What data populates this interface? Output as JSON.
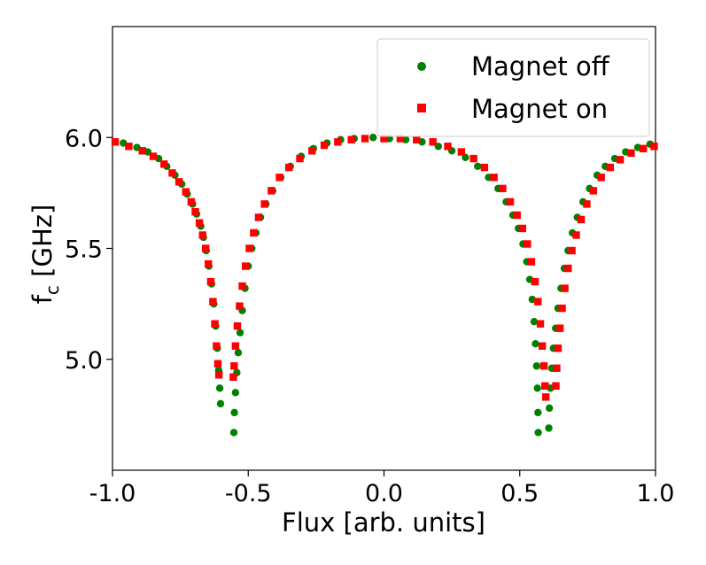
{
  "chart_data": {
    "type": "scatter",
    "title": "",
    "xlabel": "Flux [arb. units]",
    "ylabel_main": "f",
    "ylabel_sub": "c",
    "ylabel_unit": " [GHz]",
    "xlim": [
      -1.0,
      1.0
    ],
    "ylim": [
      4.5,
      6.5
    ],
    "xticks": [
      -1.0,
      -0.5,
      0.0,
      0.5,
      1.0
    ],
    "xtick_labels": [
      "-1.0",
      "-0.5",
      "0.0",
      "0.5",
      "1.0"
    ],
    "yticks": [
      5.0,
      5.5,
      6.0
    ],
    "ytick_labels": [
      "5.0",
      "5.5",
      "6.0"
    ],
    "grid": false,
    "legend_position": "top-right",
    "series": [
      {
        "name": "Magnet off",
        "marker": "circle",
        "color": "#008000",
        "center_left": -0.58,
        "center_right": 0.585,
        "points": [
          {
            "x": -0.96,
            "y": 5.975
          },
          {
            "x": -0.91,
            "y": 5.955
          },
          {
            "x": -0.87,
            "y": 5.935
          },
          {
            "x": -0.83,
            "y": 5.905
          },
          {
            "x": -0.8,
            "y": 5.87
          },
          {
            "x": -0.77,
            "y": 5.83
          },
          {
            "x": -0.745,
            "y": 5.79
          },
          {
            "x": -0.725,
            "y": 5.745
          },
          {
            "x": -0.705,
            "y": 5.7
          },
          {
            "x": -0.69,
            "y": 5.655
          },
          {
            "x": -0.675,
            "y": 5.6
          },
          {
            "x": -0.665,
            "y": 5.55
          },
          {
            "x": -0.655,
            "y": 5.49
          },
          {
            "x": -0.645,
            "y": 5.42
          },
          {
            "x": -0.635,
            "y": 5.34
          },
          {
            "x": -0.627,
            "y": 5.25
          },
          {
            "x": -0.62,
            "y": 5.15
          },
          {
            "x": -0.614,
            "y": 5.05
          },
          {
            "x": -0.609,
            "y": 4.95
          },
          {
            "x": -0.605,
            "y": 4.87
          },
          {
            "x": -0.602,
            "y": 4.8
          },
          {
            "x": -0.553,
            "y": 4.67
          },
          {
            "x": -0.551,
            "y": 4.76
          },
          {
            "x": -0.547,
            "y": 4.85
          },
          {
            "x": -0.542,
            "y": 4.94
          },
          {
            "x": -0.537,
            "y": 5.03
          },
          {
            "x": -0.53,
            "y": 5.12
          },
          {
            "x": -0.522,
            "y": 5.22
          },
          {
            "x": -0.512,
            "y": 5.32
          },
          {
            "x": -0.5,
            "y": 5.42
          },
          {
            "x": -0.487,
            "y": 5.5
          },
          {
            "x": -0.472,
            "y": 5.57
          },
          {
            "x": -0.455,
            "y": 5.64
          },
          {
            "x": -0.435,
            "y": 5.7
          },
          {
            "x": -0.41,
            "y": 5.76
          },
          {
            "x": -0.38,
            "y": 5.82
          },
          {
            "x": -0.345,
            "y": 5.87
          },
          {
            "x": -0.305,
            "y": 5.915
          },
          {
            "x": -0.26,
            "y": 5.95
          },
          {
            "x": -0.21,
            "y": 5.975
          },
          {
            "x": -0.16,
            "y": 5.99
          },
          {
            "x": -0.11,
            "y": 5.995
          },
          {
            "x": -0.04,
            "y": 6.0
          },
          {
            "x": 0.02,
            "y": 5.995
          },
          {
            "x": 0.08,
            "y": 5.99
          },
          {
            "x": 0.14,
            "y": 5.98
          },
          {
            "x": 0.2,
            "y": 5.96
          },
          {
            "x": 0.25,
            "y": 5.94
          },
          {
            "x": 0.3,
            "y": 5.91
          },
          {
            "x": 0.345,
            "y": 5.87
          },
          {
            "x": 0.385,
            "y": 5.82
          },
          {
            "x": 0.42,
            "y": 5.77
          },
          {
            "x": 0.45,
            "y": 5.71
          },
          {
            "x": 0.475,
            "y": 5.65
          },
          {
            "x": 0.495,
            "y": 5.59
          },
          {
            "x": 0.512,
            "y": 5.52
          },
          {
            "x": 0.526,
            "y": 5.44
          },
          {
            "x": 0.537,
            "y": 5.36
          },
          {
            "x": 0.546,
            "y": 5.27
          },
          {
            "x": 0.553,
            "y": 5.17
          },
          {
            "x": 0.558,
            "y": 5.07
          },
          {
            "x": 0.562,
            "y": 4.97
          },
          {
            "x": 0.565,
            "y": 4.87
          },
          {
            "x": 0.567,
            "y": 4.76
          },
          {
            "x": 0.568,
            "y": 4.67
          },
          {
            "x": 0.607,
            "y": 4.69
          },
          {
            "x": 0.609,
            "y": 4.78
          },
          {
            "x": 0.613,
            "y": 4.87
          },
          {
            "x": 0.618,
            "y": 4.96
          },
          {
            "x": 0.624,
            "y": 5.05
          },
          {
            "x": 0.632,
            "y": 5.14
          },
          {
            "x": 0.641,
            "y": 5.23
          },
          {
            "x": 0.652,
            "y": 5.32
          },
          {
            "x": 0.664,
            "y": 5.41
          },
          {
            "x": 0.678,
            "y": 5.49
          },
          {
            "x": 0.694,
            "y": 5.57
          },
          {
            "x": 0.712,
            "y": 5.64
          },
          {
            "x": 0.733,
            "y": 5.71
          },
          {
            "x": 0.757,
            "y": 5.77
          },
          {
            "x": 0.785,
            "y": 5.83
          },
          {
            "x": 0.815,
            "y": 5.87
          },
          {
            "x": 0.85,
            "y": 5.905
          },
          {
            "x": 0.89,
            "y": 5.935
          },
          {
            "x": 0.935,
            "y": 5.955
          },
          {
            "x": 0.98,
            "y": 5.97
          }
        ]
      },
      {
        "name": "Magnet on",
        "marker": "square",
        "color": "#ff0000",
        "points": [
          {
            "x": -0.99,
            "y": 5.98
          },
          {
            "x": -0.94,
            "y": 5.96
          },
          {
            "x": -0.89,
            "y": 5.94
          },
          {
            "x": -0.85,
            "y": 5.915
          },
          {
            "x": -0.81,
            "y": 5.88
          },
          {
            "x": -0.78,
            "y": 5.84
          },
          {
            "x": -0.755,
            "y": 5.8
          },
          {
            "x": -0.73,
            "y": 5.755
          },
          {
            "x": -0.71,
            "y": 5.71
          },
          {
            "x": -0.695,
            "y": 5.665
          },
          {
            "x": -0.68,
            "y": 5.615
          },
          {
            "x": -0.668,
            "y": 5.56
          },
          {
            "x": -0.657,
            "y": 5.5
          },
          {
            "x": -0.647,
            "y": 5.43
          },
          {
            "x": -0.638,
            "y": 5.35
          },
          {
            "x": -0.63,
            "y": 5.26
          },
          {
            "x": -0.623,
            "y": 5.16
          },
          {
            "x": -0.617,
            "y": 5.06
          },
          {
            "x": -0.612,
            "y": 4.98
          },
          {
            "x": -0.608,
            "y": 4.93
          },
          {
            "x": -0.555,
            "y": 4.92
          },
          {
            "x": -0.552,
            "y": 4.97
          },
          {
            "x": -0.547,
            "y": 5.06
          },
          {
            "x": -0.54,
            "y": 5.15
          },
          {
            "x": -0.532,
            "y": 5.24
          },
          {
            "x": -0.522,
            "y": 5.33
          },
          {
            "x": -0.51,
            "y": 5.42
          },
          {
            "x": -0.496,
            "y": 5.5
          },
          {
            "x": -0.48,
            "y": 5.57
          },
          {
            "x": -0.462,
            "y": 5.64
          },
          {
            "x": -0.44,
            "y": 5.7
          },
          {
            "x": -0.415,
            "y": 5.76
          },
          {
            "x": -0.385,
            "y": 5.82
          },
          {
            "x": -0.35,
            "y": 5.865
          },
          {
            "x": -0.31,
            "y": 5.905
          },
          {
            "x": -0.265,
            "y": 5.94
          },
          {
            "x": -0.22,
            "y": 5.965
          },
          {
            "x": -0.17,
            "y": 5.98
          },
          {
            "x": -0.12,
            "y": 5.99
          },
          {
            "x": -0.07,
            "y": 5.995
          },
          {
            "x": 0.0,
            "y": 5.995
          },
          {
            "x": 0.06,
            "y": 5.995
          },
          {
            "x": 0.12,
            "y": 5.99
          },
          {
            "x": 0.18,
            "y": 5.98
          },
          {
            "x": 0.235,
            "y": 5.96
          },
          {
            "x": 0.285,
            "y": 5.935
          },
          {
            "x": 0.33,
            "y": 5.905
          },
          {
            "x": 0.37,
            "y": 5.865
          },
          {
            "x": 0.405,
            "y": 5.82
          },
          {
            "x": 0.437,
            "y": 5.77
          },
          {
            "x": 0.465,
            "y": 5.71
          },
          {
            "x": 0.49,
            "y": 5.65
          },
          {
            "x": 0.51,
            "y": 5.59
          },
          {
            "x": 0.528,
            "y": 5.52
          },
          {
            "x": 0.543,
            "y": 5.44
          },
          {
            "x": 0.556,
            "y": 5.35
          },
          {
            "x": 0.567,
            "y": 5.26
          },
          {
            "x": 0.576,
            "y": 5.16
          },
          {
            "x": 0.583,
            "y": 5.06
          },
          {
            "x": 0.589,
            "y": 4.97
          },
          {
            "x": 0.593,
            "y": 4.88
          },
          {
            "x": 0.596,
            "y": 4.83
          },
          {
            "x": 0.633,
            "y": 4.88
          },
          {
            "x": 0.636,
            "y": 4.96
          },
          {
            "x": 0.641,
            "y": 5.05
          },
          {
            "x": 0.648,
            "y": 5.14
          },
          {
            "x": 0.656,
            "y": 5.23
          },
          {
            "x": 0.666,
            "y": 5.32
          },
          {
            "x": 0.678,
            "y": 5.41
          },
          {
            "x": 0.692,
            "y": 5.49
          },
          {
            "x": 0.708,
            "y": 5.56
          },
          {
            "x": 0.726,
            "y": 5.63
          },
          {
            "x": 0.747,
            "y": 5.7
          },
          {
            "x": 0.771,
            "y": 5.76
          },
          {
            "x": 0.8,
            "y": 5.82
          },
          {
            "x": 0.833,
            "y": 5.865
          },
          {
            "x": 0.87,
            "y": 5.9
          },
          {
            "x": 0.91,
            "y": 5.93
          },
          {
            "x": 0.955,
            "y": 5.95
          },
          {
            "x": 0.995,
            "y": 5.96
          }
        ]
      }
    ]
  }
}
